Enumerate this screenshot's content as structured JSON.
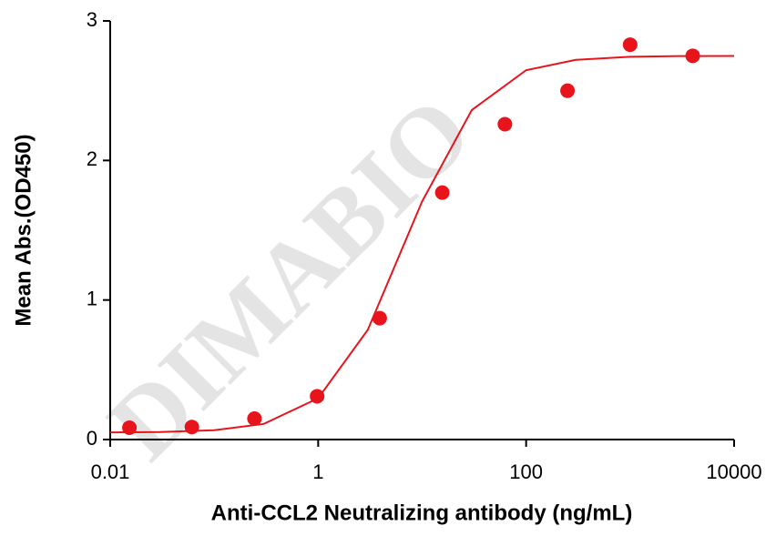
{
  "chart_data": {
    "type": "scatter",
    "x_label": "Anti-CCL2 Neutralizing antibody (ng/mL)",
    "y_label": "Mean Abs.(OD450)",
    "watermark": "DIMABIO",
    "x": [
      0.0153,
      0.061,
      0.244,
      0.977,
      3.906,
      15.625,
      62.5,
      250,
      1000,
      4000
    ],
    "values": [
      0.085,
      0.09,
      0.15,
      0.31,
      0.87,
      1.77,
      2.26,
      2.5,
      2.83,
      2.75
    ],
    "color": "#e8141c",
    "curve": {
      "x": [
        0.01,
        0.03,
        0.1,
        0.3,
        1,
        3,
        10,
        30,
        100,
        300,
        1000,
        3000,
        10000
      ],
      "values": [
        0.051,
        0.054,
        0.067,
        0.112,
        0.296,
        0.786,
        1.707,
        2.361,
        2.647,
        2.721,
        2.743,
        2.748,
        2.749
      ]
    },
    "xscale": "log",
    "xlim": [
      0.01,
      10000
    ],
    "xticks": [
      0.01,
      1,
      100,
      10000
    ],
    "ylim": [
      0,
      3
    ],
    "yticks": [
      0,
      1,
      2,
      3
    ]
  }
}
